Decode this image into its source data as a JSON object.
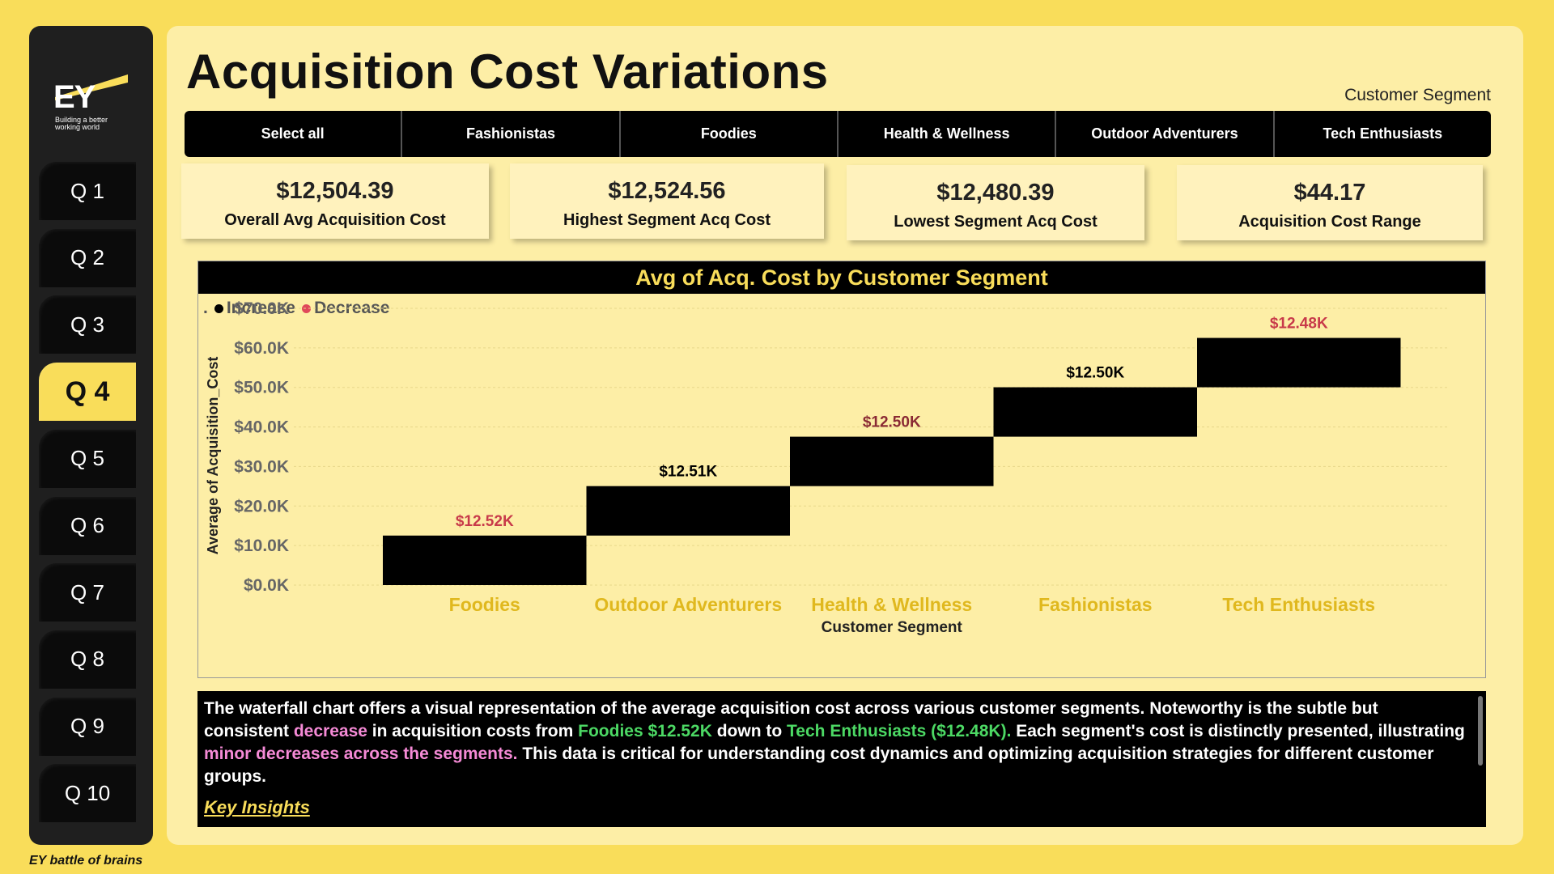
{
  "sidebar": {
    "logo_text": "EY",
    "logo_tagline": "Building a better working world",
    "items": [
      "Q 1",
      "Q 2",
      "Q 3",
      "Q 4",
      "Q 5",
      "Q 6",
      "Q 7",
      "Q 8",
      "Q 9",
      "Q 10"
    ],
    "active_index": 3,
    "footnote": "EY battle of brains"
  },
  "header": {
    "title": "Acquisition Cost Variations",
    "slicer_label": "Customer Segment",
    "slicer_options": [
      "Select all",
      "Fashionistas",
      "Foodies",
      "Health & Wellness",
      "Outdoor Adventurers",
      "Tech Enthusiasts"
    ]
  },
  "kpis": [
    {
      "value": "$12,504.39",
      "label": "Overall Avg Acquisition Cost"
    },
    {
      "value": "$12,524.56",
      "label": "Highest Segment Acq Cost"
    },
    {
      "value": "$12,480.39",
      "label": "Lowest Segment Acq Cost"
    },
    {
      "value": "$44.17",
      "label": "Acquisition Cost Range"
    }
  ],
  "chart_data": {
    "type": "waterfall",
    "title": "Avg of Acq. Cost by Customer Segment",
    "xlabel": "Customer Segment",
    "ylabel": "Average of Acquisition_Cost",
    "legend": [
      {
        "name": "Increase",
        "color": "#000000"
      },
      {
        "name": "Decrease",
        "color": "#e0485a"
      }
    ],
    "legend_prefix": ".",
    "categories": [
      "Foodies",
      "Outdoor Adventurers",
      "Health & Wellness",
      "Fashionistas",
      "Tech Enthusiasts"
    ],
    "starts": [
      0,
      12524.56,
      25035.21,
      37535.21,
      50035.21
    ],
    "values": [
      12524.56,
      12510.65,
      12500,
      12500,
      12480.39
    ],
    "data_labels": [
      "$12.52K",
      "$12.51K",
      "$12.50K",
      "$12.50K",
      "$12.48K"
    ],
    "label_colors": [
      "#c83a4a",
      "#000000",
      "#8a2a34",
      "#000000",
      "#c83a4a"
    ],
    "yticks": [
      "$0.0K",
      "$10.0K",
      "$20.0K",
      "$30.0K",
      "$40.0K",
      "$50.0K",
      "$60.0K",
      "$70.0K"
    ],
    "ylim": [
      0,
      70000
    ],
    "grid": true,
    "legend_position": "top-left"
  },
  "insight": {
    "p1": "The waterfall chart offers a visual representation of the average acquisition cost across various customer segments. Noteworthy is the subtle but consistent ",
    "h1": "decrease",
    "p2": " in acquisition costs from ",
    "h2": "Foodies $12.52K",
    "p3": " down to ",
    "h3": "Tech Enthusiasts ($12.48K).",
    "p4": " Each segment's cost is distinctly presented, illustrating ",
    "h4": "minor decreases across the segments.",
    "p5": " This data is critical for understanding cost dynamics and optimizing acquisition strategies for different customer groups.",
    "link": "Key Insights"
  }
}
